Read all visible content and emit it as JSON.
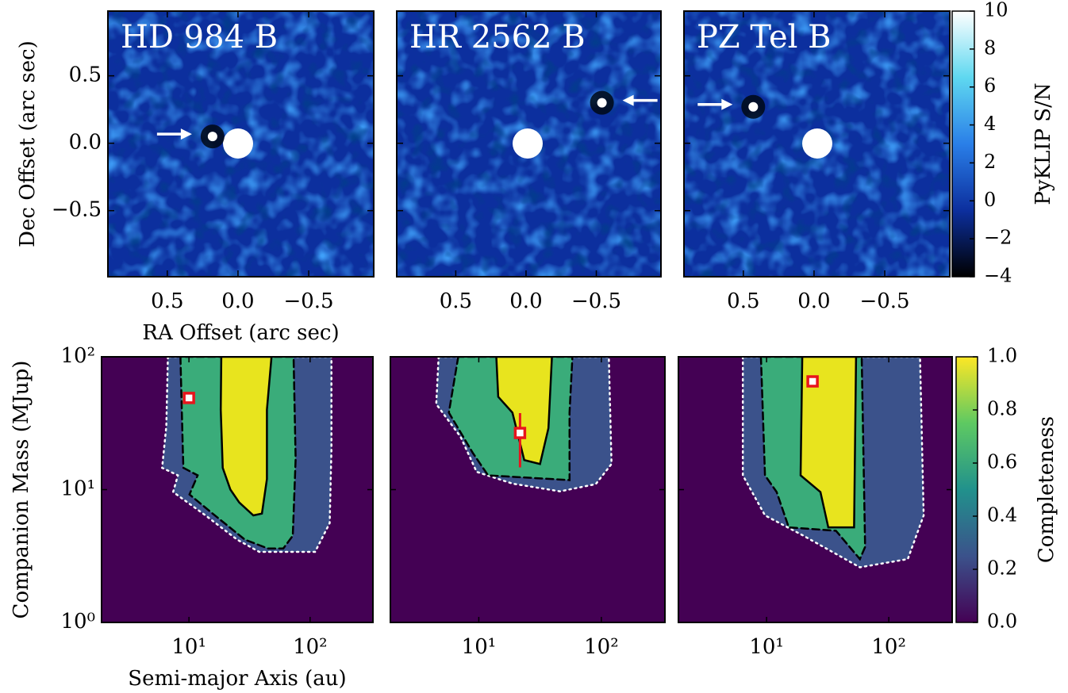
{
  "chart_data": [
    {
      "type": "image",
      "title": "HD 984 B",
      "xlabel": "RA Offset (arc sec)",
      "ylabel": "Dec Offset (arc sec)",
      "xlim": [
        0.92,
        -0.96
      ],
      "ylim": [
        -0.99,
        0.98
      ],
      "xticks": [
        0.5,
        {
          "value": 0,
          "label": "0.0"
        },
        {
          "value": -0.5,
          "label": "−0.5"
        }
      ],
      "yticks": [
        {
          "value": -0.5,
          "label": "−0.5"
        },
        {
          "value": 0,
          "label": "0.0"
        },
        0.5
      ],
      "background": "#0c2f9e",
      "companion": {
        "x": 0.18,
        "y": 0.05
      },
      "arrow_from": "left"
    },
    {
      "type": "image",
      "title": "HR 2562 B",
      "xlim": [
        0.92,
        -0.96
      ],
      "ylim": [
        -0.99,
        0.98
      ],
      "xticks": [
        0.5,
        {
          "value": 0,
          "label": "0.0"
        },
        {
          "value": -0.5,
          "label": "−0.5"
        }
      ],
      "yticks": [
        -0.5,
        0,
        0.5
      ],
      "ytick_labels": false,
      "background": "#0c2f9e",
      "companion": {
        "x": -0.54,
        "y": 0.3
      },
      "arrow_from": "right"
    },
    {
      "type": "image",
      "title": "PZ Tel B",
      "xlim": [
        0.92,
        -0.96
      ],
      "ylim": [
        -0.99,
        0.98
      ],
      "xticks": [
        0.5,
        {
          "value": 0,
          "label": "0.0"
        },
        {
          "value": -0.5,
          "label": "−0.5"
        }
      ],
      "yticks": [
        -0.5,
        0,
        0.5
      ],
      "ytick_labels": false,
      "background": "#0c2f9e",
      "companion": {
        "x": 0.43,
        "y": 0.27
      },
      "arrow_from": "left",
      "colorbar": {
        "label": "PyKLIP S/N",
        "lim": [
          -4,
          10
        ],
        "ticks": [
          {
            "value": -4,
            "label": "−4"
          },
          {
            "value": -2,
            "label": "−2"
          },
          0,
          2,
          4,
          6,
          8,
          10
        ],
        "colors": [
          "#000000",
          "#0c2f9e",
          "#2a7fe8",
          "#5fd8f0",
          "#ffffff"
        ]
      }
    },
    {
      "type": "contour",
      "xlabel": "Semi-major Axis (au)",
      "ylabel": "Companion Mass (MJup)",
      "xscale": "log",
      "yscale": "log",
      "xlim": [
        1.9,
        330
      ],
      "ylim": [
        1,
        100
      ],
      "xticks": [
        {
          "value": 10,
          "label": "10¹"
        },
        {
          "value": 100,
          "label": "10²"
        }
      ],
      "yticks": [
        {
          "value": 1,
          "label": "10⁰"
        },
        {
          "value": 10,
          "label": "10¹"
        },
        {
          "value": 100,
          "label": "10²"
        }
      ],
      "background": "#440154",
      "contours": [
        {
          "style": "dotted",
          "stroke": "#ffffff",
          "fill": "#3b528b",
          "x": [
            6.7,
            6.5,
            6.0,
            8.1,
            7.4,
            13.7,
            25,
            38,
            110,
            145,
            150,
            150
          ],
          "y": [
            100,
            30,
            14.6,
            12.8,
            9.6,
            6.4,
            4.2,
            3.4,
            3.4,
            5.6,
            20,
            100
          ]
        },
        {
          "style": "dashed",
          "stroke": "#000000",
          "fill": "#3aac7a",
          "x": [
            8.5,
            8.9,
            9.0,
            11.8,
            10.1,
            16,
            29,
            45,
            60,
            72,
            76,
            73
          ],
          "y": [
            100,
            20,
            14.6,
            12.8,
            9.2,
            6.5,
            4.2,
            3.6,
            3.6,
            4.5,
            17,
            100
          ]
        },
        {
          "style": "solid",
          "stroke": "#000000",
          "fill": "#e8e41e",
          "x": [
            18.5,
            18.3,
            19,
            22,
            26,
            34,
            40,
            44,
            44,
            48
          ],
          "y": [
            100,
            40,
            14.6,
            10,
            8,
            6.4,
            6.6,
            12,
            40,
            100
          ]
        }
      ],
      "companion": {
        "x": 10,
        "y": 49
      }
    },
    {
      "type": "contour",
      "xscale": "log",
      "yscale": "log",
      "xlim": [
        1.9,
        330
      ],
      "ylim": [
        1,
        100
      ],
      "xticks": [
        {
          "value": 10,
          "label": "10¹"
        },
        {
          "value": 100,
          "label": "10²"
        }
      ],
      "yticks": [
        1,
        10,
        100
      ],
      "ytick_labels": false,
      "background": "#440154",
      "contours": [
        {
          "style": "dotted",
          "stroke": "#ffffff",
          "fill": "#3b528b",
          "x": [
            4.7,
            4.5,
            7.1,
            9.6,
            18.8,
            46,
            90,
            121,
            115
          ],
          "y": [
            100,
            44,
            25,
            13.6,
            11.1,
            9.7,
            11,
            15.6,
            100
          ]
        },
        {
          "style": "dashed",
          "stroke": "#000000",
          "fill": "#3aac7a",
          "x": [
            6.8,
            5.7,
            8.9,
            11.9,
            55,
            55,
            58
          ],
          "y": [
            100,
            38,
            19,
            12.8,
            11.8,
            38,
            100
          ]
        },
        {
          "style": "solid",
          "stroke": "#000000",
          "fill": "#e8e41e",
          "x": [
            13.9,
            14.4,
            18.8,
            23.5,
            31.6,
            37,
            39.5
          ],
          "y": [
            100,
            50,
            38,
            16.7,
            15.6,
            29,
            100
          ]
        }
      ],
      "companion": {
        "x": 21.7,
        "y": 26.7,
        "yerr": [
          12,
          11
        ]
      }
    },
    {
      "type": "contour",
      "xscale": "log",
      "yscale": "log",
      "xlim": [
        1.9,
        330
      ],
      "ylim": [
        1,
        100
      ],
      "xticks": [
        {
          "value": 10,
          "label": "10¹"
        },
        {
          "value": 100,
          "label": "10²"
        }
      ],
      "yticks": [
        1,
        10,
        100
      ],
      "ytick_labels": false,
      "background": "#440154",
      "contours": [
        {
          "style": "dotted",
          "stroke": "#ffffff",
          "fill": "#3b528b",
          "x": [
            6.4,
            6.4,
            9.7,
            20,
            58,
            143,
            193,
            180
          ],
          "y": [
            100,
            12.8,
            6.4,
            4.5,
            2.6,
            3.0,
            6.4,
            100
          ]
        },
        {
          "style": "dashed",
          "stroke": "#000000",
          "fill": "#3aac7a",
          "x": [
            9.0,
            9.7,
            12.1,
            15.2,
            37,
            58,
            64,
            60
          ],
          "y": [
            100,
            12.8,
            9.6,
            5.2,
            4.9,
            3.0,
            3.7,
            100
          ]
        },
        {
          "style": "solid",
          "stroke": "#000000",
          "fill": "#e8e41e",
          "x": [
            19.6,
            19.0,
            27.6,
            32,
            52,
            54
          ],
          "y": [
            100,
            12.8,
            9.6,
            5.2,
            5.2,
            100
          ]
        }
      ],
      "companion": {
        "x": 23.8,
        "y": 65.3
      },
      "colorbar": {
        "label": "Completeness",
        "lim": [
          0,
          1
        ],
        "ticks": [
          {
            "value": 0,
            "label": "0.0"
          },
          0.2,
          0.4,
          0.6,
          0.8,
          {
            "value": 1,
            "label": "1.0"
          }
        ],
        "colors": [
          "#440154",
          "#3b528b",
          "#21918c",
          "#5ec962",
          "#fde725"
        ]
      }
    }
  ]
}
